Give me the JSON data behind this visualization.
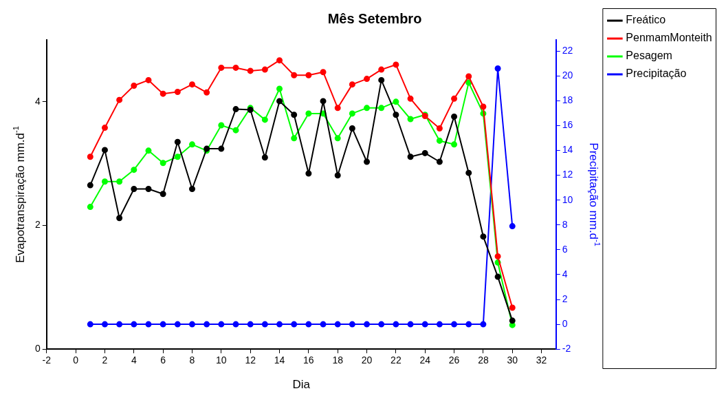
{
  "chart_data": {
    "type": "line",
    "title": "Mês Setembro",
    "xlabel": "Dia",
    "ylabel": "Evapotranspiração mm.d$^{-1}$",
    "y2label": "Precipitação mm.d$^{-1}$",
    "x": [
      1,
      2,
      3,
      4,
      5,
      6,
      7,
      8,
      9,
      10,
      11,
      12,
      13,
      14,
      15,
      16,
      17,
      18,
      19,
      20,
      21,
      22,
      23,
      24,
      25,
      26,
      27,
      28,
      29,
      30
    ],
    "series": [
      {
        "name": "Freático",
        "color": "#000000",
        "values": [
          2.65,
          3.22,
          2.12,
          2.59,
          2.59,
          2.51,
          3.35,
          2.59,
          3.24,
          3.24,
          3.88,
          3.87,
          3.1,
          4.01,
          3.79,
          2.84,
          4.01,
          2.81,
          3.57,
          3.03,
          4.35,
          3.79,
          3.11,
          3.17,
          3.03,
          3.76,
          2.85,
          1.82,
          1.17,
          0.46
        ]
      },
      {
        "name": "PenmamMonteith",
        "color": "#ff0000",
        "values": [
          3.11,
          3.58,
          4.03,
          4.26,
          4.35,
          4.13,
          4.16,
          4.28,
          4.15,
          4.55,
          4.55,
          4.5,
          4.52,
          4.67,
          4.43,
          4.43,
          4.48,
          3.9,
          4.28,
          4.37,
          4.52,
          4.6,
          4.05,
          3.77,
          3.57,
          4.05,
          4.41,
          3.92,
          1.5,
          0.67
        ]
      },
      {
        "name": "Pesagem",
        "color": "#00ff00",
        "values": [
          2.3,
          2.71,
          2.71,
          2.9,
          3.21,
          3.01,
          3.11,
          3.31,
          3.21,
          3.62,
          3.54,
          3.9,
          3.71,
          4.21,
          3.41,
          3.81,
          3.81,
          3.41,
          3.81,
          3.9,
          3.9,
          4.0,
          3.72,
          3.79,
          3.37,
          3.31,
          4.31,
          3.81,
          1.4,
          0.39
        ]
      },
      {
        "name": "Precipitação",
        "color": "#0000ff",
        "axis": "y2",
        "values": [
          0,
          0,
          0,
          0,
          0,
          0,
          0,
          0,
          0,
          0,
          0,
          0,
          0,
          0,
          0,
          0,
          0,
          0,
          0,
          0,
          0,
          0,
          0,
          0,
          0,
          0,
          0,
          0,
          20.6,
          7.9
        ]
      }
    ],
    "xlim": [
      -2,
      33
    ],
    "xticks": [
      -2,
      0,
      2,
      4,
      6,
      8,
      10,
      12,
      14,
      16,
      18,
      20,
      22,
      24,
      26,
      28,
      30,
      32
    ],
    "ylim": [
      0,
      5
    ],
    "yticks": [
      0,
      2,
      4
    ],
    "y2lim": [
      -2,
      22.9
    ],
    "y2ticks": [
      -2,
      0,
      2,
      4,
      6,
      8,
      10,
      12,
      14,
      16,
      18,
      20,
      22
    ],
    "grid": false,
    "legend": "top right",
    "marker": "circle",
    "line_style": "solid"
  }
}
